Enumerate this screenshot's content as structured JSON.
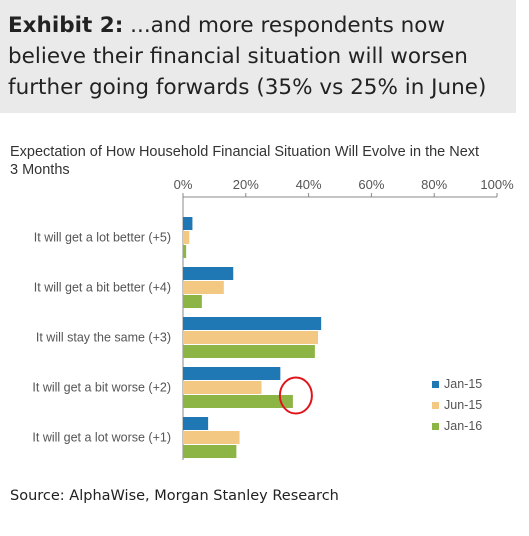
{
  "header": {
    "exhibit_label": "Exhibit 2:",
    "headline": "...and more respondents now believe their financial situation will worsen further going forwards (35% vs 25% in June)"
  },
  "source": "Source: AlphaWise, Morgan Stanley Research",
  "colors": {
    "header_bg": "#eaeaea",
    "highlight_circle": "#e0151b"
  },
  "chart_data": {
    "type": "bar",
    "orientation": "horizontal",
    "title": "Expectation of How Household Financial Situation Will Evolve in the Next 3 Months",
    "xlim": [
      0,
      100
    ],
    "x_ticks": [
      "0%",
      "20%",
      "40%",
      "60%",
      "80%",
      "100%"
    ],
    "categories": [
      "It will get a lot better  (+5)",
      "It will get a bit better  (+4)",
      "It will stay the same    (+3)",
      "It will get a bit worse  (+2)",
      "It will get a lot worse  (+1)"
    ],
    "series": [
      {
        "name": "Jan-15",
        "color": "#1f77b4",
        "values": [
          3,
          16,
          44,
          31,
          8
        ]
      },
      {
        "name": "Jun-15",
        "color": "#f2c883",
        "values": [
          2,
          13,
          43,
          25,
          18
        ]
      },
      {
        "name": "Jan-16",
        "color": "#8cb545",
        "values": [
          1,
          6,
          42,
          35,
          17
        ]
      }
    ],
    "legend_position": "right",
    "annotation": {
      "type": "circle",
      "category": "It will get a bit worse  (+2)",
      "series": "Jan-16"
    }
  }
}
